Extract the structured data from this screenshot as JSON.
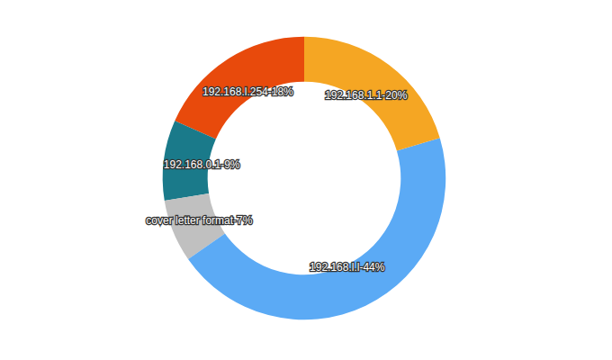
{
  "chart_data": {
    "type": "donut",
    "categories": [
      "192.168.l.254-18%",
      "192.168.0.1-9%",
      "cover letter format-7%",
      "192.168.l.l-44%",
      "192.168.1.1-20%"
    ],
    "values": [
      18,
      9,
      7,
      44,
      20
    ],
    "colors": [
      "#E84A0C",
      "#1A7A8A",
      "#C0C0C0",
      "#5BAAF5",
      "#F5A623"
    ]
  }
}
